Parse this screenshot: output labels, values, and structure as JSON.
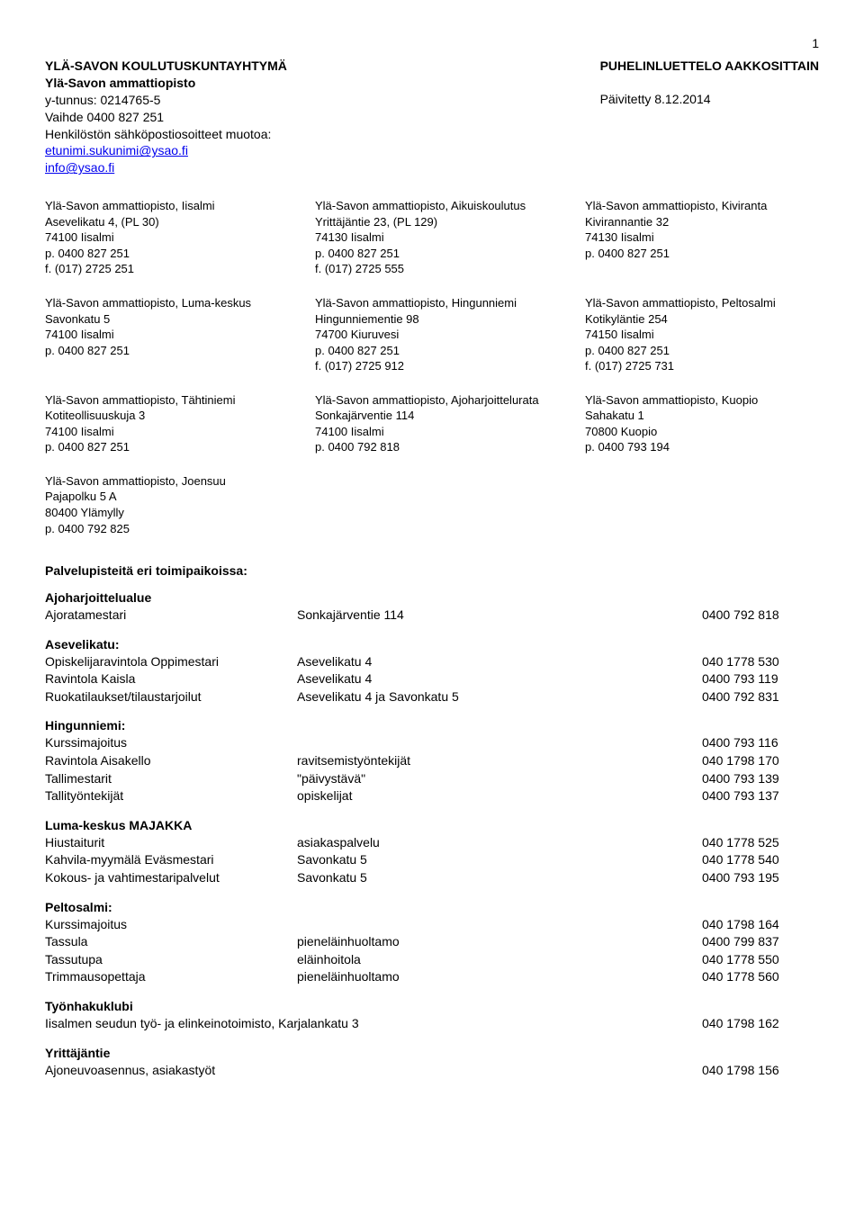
{
  "page_number": "1",
  "header": {
    "org": "YLÄ-SAVON KOULUTUSKUNTAYHTYMÄ",
    "school": "Ylä-Savon ammattiopisto",
    "y_tunnus_label": "y-tunnus: 0214765-5",
    "vaihde": "Vaihde 0400 827 251",
    "email_label": "Henkilöstön sähköpostiosoitteet muotoa:",
    "email1": "etunimi.sukunimi@ysao.fi",
    "email2": "info@ysao.fi",
    "right_title": "PUHELINLUETTELO AAKKOSITTAIN",
    "updated": "Päivitetty 8.12.2014"
  },
  "addr": [
    {
      "l1": "Ylä-Savon ammattiopisto, Iisalmi",
      "l2": "Asevelikatu 4, (PL 30)",
      "l3": "74100 Iisalmi",
      "l4": "p. 0400 827 251",
      "l5": "f. (017) 2725 251"
    },
    {
      "l1": "Ylä-Savon ammattiopisto, Aikuiskoulutus",
      "l2": "Yrittäjäntie 23, (PL 129)",
      "l3": "74130 Iisalmi",
      "l4": "p. 0400 827 251",
      "l5": "f. (017) 2725 555"
    },
    {
      "l1": "Ylä-Savon ammattiopisto, Kiviranta",
      "l2": "Kivirannantie 32",
      "l3": "74130 Iisalmi",
      "l4": "p. 0400 827 251",
      "l5": ""
    },
    {
      "l1": "Ylä-Savon ammattiopisto, Luma-keskus",
      "l2": "Savonkatu 5",
      "l3": "74100 Iisalmi",
      "l4": "p. 0400 827 251",
      "l5": ""
    },
    {
      "l1": "Ylä-Savon ammattiopisto, Hingunniemi",
      "l2": "Hingunniementie 98",
      "l3": "74700 Kiuruvesi",
      "l4": "p. 0400 827 251",
      "l5": "f. (017) 2725 912"
    },
    {
      "l1": "Ylä-Savon ammattiopisto, Peltosalmi",
      "l2": "Kotikyläntie 254",
      "l3": "74150 Iisalmi",
      "l4": "p. 0400 827 251",
      "l5": "f. (017) 2725 731"
    },
    {
      "l1": "Ylä-Savon ammattiopisto, Tähtiniemi",
      "l2": "Kotiteollisuuskuja 3",
      "l3": "74100 Iisalmi",
      "l4": "p. 0400 827 251",
      "l5": ""
    },
    {
      "l1": "Ylä-Savon ammattiopisto, Ajoharjoittelurata",
      "l2": "Sonkajärventie 114",
      "l3": "74100 Iisalmi",
      "l4": "p. 0400 792 818",
      "l5": ""
    },
    {
      "l1": "Ylä-Savon ammattiopisto, Kuopio",
      "l2": "Sahakatu 1",
      "l3": "70800 Kuopio",
      "l4": "p. 0400 793 194",
      "l5": ""
    },
    {
      "l1": "Ylä-Savon ammattiopisto, Joensuu",
      "l2": "Pajapolku 5 A",
      "l3": "80400 Ylämylly",
      "l4": "p. 0400 792 825",
      "l5": ""
    }
  ],
  "section_title": "Palvelupisteitä eri toimipaikoissa:",
  "groups": [
    {
      "title": "Ajoharjoittelualue",
      "rows": [
        {
          "c1": "Ajoratamestari",
          "c2": "Sonkajärventie 114",
          "c3": "0400 792 818"
        }
      ]
    },
    {
      "title": "Asevelikatu:",
      "rows": [
        {
          "c1": "Opiskelijaravintola Oppimestari",
          "c2": "Asevelikatu 4",
          "c3": "040 1778 530"
        },
        {
          "c1": "Ravintola Kaisla",
          "c2": "Asevelikatu 4",
          "c3": "0400 793 119"
        },
        {
          "c1": "Ruokatilaukset/tilaustarjoilut",
          "c2": "Asevelikatu 4 ja Savonkatu 5",
          "c3": "0400 792 831"
        }
      ]
    },
    {
      "title": "Hingunniemi:",
      "rows": [
        {
          "c1": "Kurssimajoitus",
          "c2": "",
          "c3": "0400 793 116"
        },
        {
          "c1": "Ravintola Aisakello",
          "c2": "ravitsemistyöntekijät",
          "c3": "040 1798 170"
        },
        {
          "c1": "Tallimestarit",
          "c2": "\"päivystävä\"",
          "c3": "0400 793 139"
        },
        {
          "c1": "Tallityöntekijät",
          "c2": "opiskelijat",
          "c3": "0400 793 137"
        }
      ]
    },
    {
      "title": "Luma-keskus MAJAKKA",
      "rows": [
        {
          "c1": "Hiustaiturit",
          "c2": "asiakaspalvelu",
          "c3": "040 1778 525"
        },
        {
          "c1": "Kahvila-myymälä Eväsmestari",
          "c2": "Savonkatu 5",
          "c3": "040 1778 540"
        },
        {
          "c1": "Kokous- ja vahtimestaripalvelut",
          "c2": "Savonkatu 5",
          "c3": "0400 793 195"
        }
      ]
    },
    {
      "title": "Peltosalmi:",
      "rows": [
        {
          "c1": "Kurssimajoitus",
          "c2": "",
          "c3": "040 1798 164"
        },
        {
          "c1": "Tassula",
          "c2": "pieneläinhuoltamo",
          "c3": "0400 799 837"
        },
        {
          "c1": "Tassutupa",
          "c2": "eläinhoitola",
          "c3": "040 1778 550"
        },
        {
          "c1": "Trimmausopettaja",
          "c2": "pieneläinhuoltamo",
          "c3": "040 1778 560"
        }
      ]
    },
    {
      "title": "Työnhakuklubi",
      "rows": [
        {
          "c1": "Iisalmen seudun työ- ja elinkeinotoimisto, Karjalankatu 3",
          "c2": "",
          "c3": "040 1798 162",
          "wide": true
        }
      ]
    },
    {
      "title": "Yrittäjäntie",
      "rows": [
        {
          "c1": "Ajoneuvoasennus, asiakastyöt",
          "c2": "",
          "c3": "040 1798 156"
        }
      ]
    }
  ]
}
